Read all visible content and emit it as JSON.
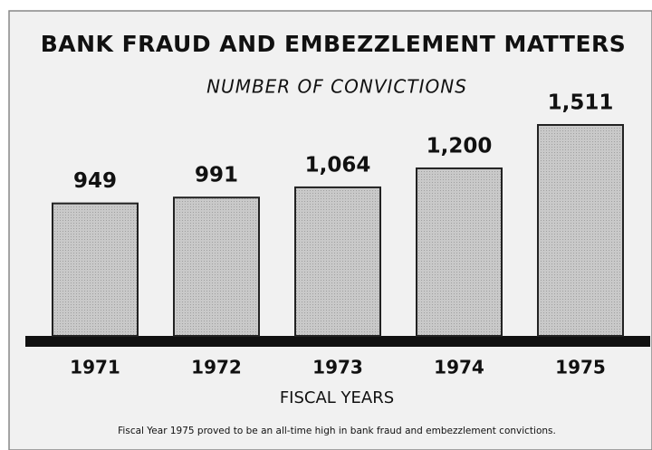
{
  "chart_data": {
    "type": "bar",
    "title": "BANK FRAUD AND EMBEZZLEMENT MATTERS",
    "subtitle": "NUMBER OF CONVICTIONS",
    "categories": [
      "1971",
      "1972",
      "1973",
      "1974",
      "1975"
    ],
    "values": [
      949,
      991,
      1064,
      1200,
      1511
    ],
    "value_labels": [
      "949",
      "991",
      "1,064",
      "1,200",
      "1,511"
    ],
    "color": "#c9c9c9",
    "x_label": "FISCAL YEARS",
    "note": "Fiscal Year 1975 proved to be an all-time high in bank fraud and embezzlement convictions."
  }
}
